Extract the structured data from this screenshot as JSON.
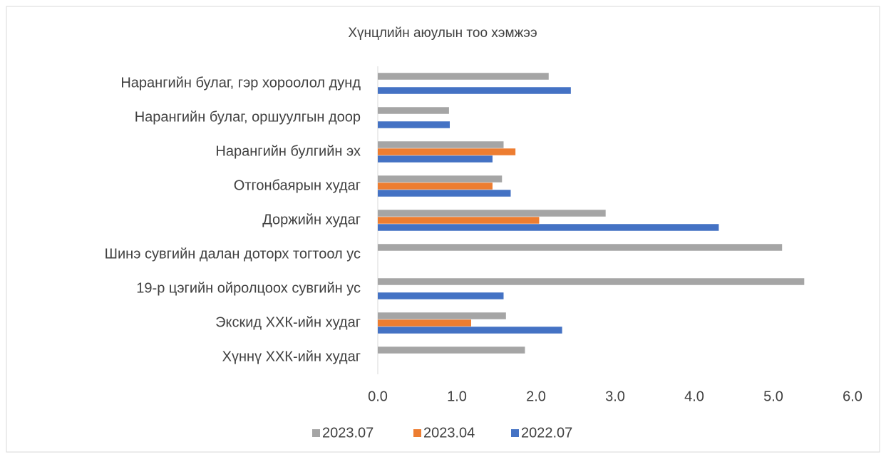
{
  "chart_data": {
    "type": "hbar",
    "title": "Хүнцлийн аюулын тоо хэмжээ",
    "categories": [
      "Нарангийн булаг, гэр хороолол дунд",
      "Нарангийн булаг, оршуулгын доор",
      "Нарангийн булгийн эх",
      "Отгонбаярын худаг",
      "Доржийн худаг",
      "Шинэ сувгийн далан доторх тогтоол ус",
      "19-р цэгийн ойролцоох сувгийн ус",
      "Экскид ХХК-ийн худаг",
      "Хүннү ХХК-ийн худаг"
    ],
    "series": [
      {
        "name": "2023.07",
        "color": "#a5a5a5",
        "values": [
          2.16,
          0.9,
          1.59,
          1.57,
          2.88,
          5.11,
          5.39,
          1.62,
          1.86
        ]
      },
      {
        "name": "2023.04",
        "color": "#ed7d31",
        "values": [
          null,
          null,
          1.74,
          1.45,
          2.04,
          null,
          null,
          1.18,
          null
        ]
      },
      {
        "name": "2022.07",
        "color": "#4472c4",
        "values": [
          2.44,
          0.91,
          1.45,
          1.68,
          4.31,
          null,
          1.59,
          2.33,
          null
        ]
      }
    ],
    "xlim": [
      0,
      6
    ],
    "xticks": [
      {
        "value": 0,
        "label": "0.0"
      },
      {
        "value": 1,
        "label": "1.0"
      },
      {
        "value": 2,
        "label": "2.0"
      },
      {
        "value": 3,
        "label": "3.0"
      },
      {
        "value": 4,
        "label": "4.0"
      },
      {
        "value": 5,
        "label": "5.0"
      },
      {
        "value": 6,
        "label": "6.0"
      }
    ],
    "grid": false,
    "legend": "bottom"
  }
}
